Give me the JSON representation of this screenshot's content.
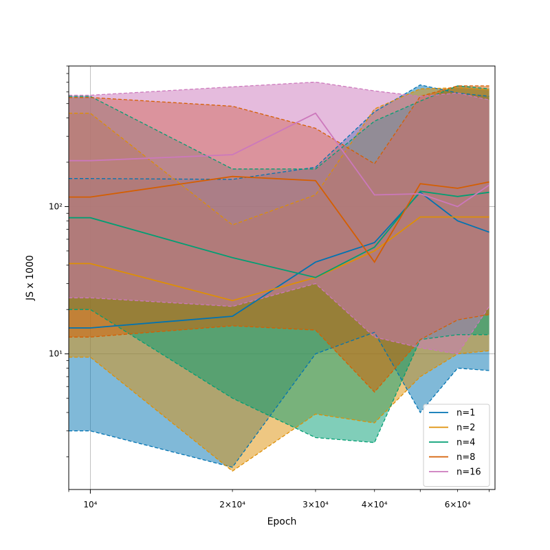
{
  "chart_data": {
    "type": "line",
    "title": "",
    "xlabel": "Epoch",
    "ylabel": "JS x 1000",
    "xscale": "log",
    "yscale": "log",
    "xlim": [
      9000,
      72000
    ],
    "ylim": [
      1.2,
      900
    ],
    "grid": true,
    "legend_position": "lower-right",
    "x_ticks": [
      {
        "value": 10000,
        "label": "10⁴"
      },
      {
        "value": 20000,
        "label": "2×10⁴"
      },
      {
        "value": 30000,
        "label": "3×10⁴"
      },
      {
        "value": 40000,
        "label": "4×10⁴"
      },
      {
        "value": 60000,
        "label": "6×10⁴"
      }
    ],
    "y_ticks": [
      {
        "value": 10,
        "label": "10¹"
      },
      {
        "value": 100,
        "label": "10²"
      }
    ],
    "x": [
      9000,
      10000,
      20000,
      30000,
      40000,
      50000,
      60000,
      70000
    ],
    "series": [
      {
        "name": "n=1",
        "color": "#0173b2",
        "values": [
          15,
          15,
          18,
          42,
          57,
          125,
          80,
          67
        ],
        "lower": [
          3,
          3,
          1.7,
          10,
          14,
          4,
          8,
          7.7
        ],
        "upper": [
          155,
          155,
          153,
          185,
          440,
          670,
          590,
          560
        ]
      },
      {
        "name": "n=2",
        "color": "#de8f05",
        "values": [
          41,
          41,
          23,
          33,
          50,
          85,
          85,
          85
        ],
        "lower": [
          9.5,
          9.5,
          1.6,
          3.9,
          3.4,
          7,
          10,
          10.5
        ],
        "upper": [
          430,
          430,
          75,
          120,
          460,
          630,
          640,
          620
        ]
      },
      {
        "name": "n=4",
        "color": "#029e73",
        "values": [
          84,
          84,
          45,
          33,
          53,
          127,
          117,
          125
        ],
        "lower": [
          20,
          20,
          5,
          2.7,
          2.5,
          12.5,
          13.5,
          13.5
        ],
        "upper": [
          560,
          560,
          180,
          180,
          380,
          520,
          660,
          630
        ]
      },
      {
        "name": "n=8",
        "color": "#d55e00",
        "values": [
          116,
          116,
          160,
          150,
          42,
          143,
          133,
          147
        ],
        "lower": [
          13,
          13,
          15.5,
          14.5,
          5.5,
          12.5,
          17,
          18.5
        ],
        "upper": [
          550,
          550,
          480,
          340,
          195,
          560,
          660,
          660
        ]
      },
      {
        "name": "n=16",
        "color": "#cc78bc",
        "values": [
          205,
          205,
          225,
          430,
          120,
          122,
          100,
          140
        ],
        "lower": [
          24,
          24,
          21,
          30,
          13,
          11,
          10,
          21
        ],
        "upper": [
          570,
          570,
          650,
          700,
          610,
          560,
          590,
          530
        ]
      }
    ]
  }
}
